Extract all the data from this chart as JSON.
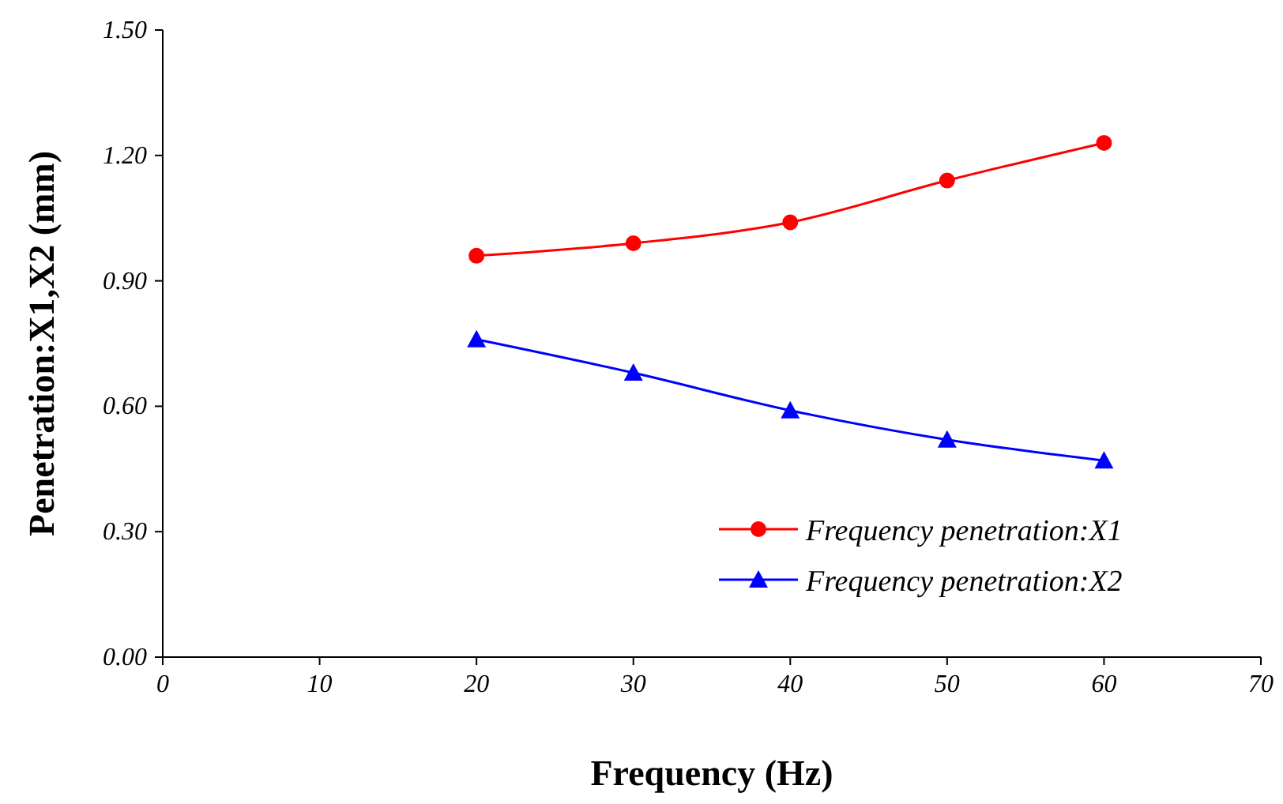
{
  "chart_data": {
    "type": "line",
    "xlabel": "Frequency (Hz)",
    "ylabel": "Penetration:X1,X2 (mm)",
    "x": [
      20,
      30,
      40,
      50,
      60
    ],
    "series": [
      {
        "name": "Frequency penetration:X1",
        "color": "#ff0000",
        "marker": "circle",
        "values": [
          0.96,
          0.99,
          1.04,
          1.14,
          1.23
        ]
      },
      {
        "name": "Frequency penetration:X2",
        "color": "#0000ff",
        "marker": "triangle",
        "values": [
          0.76,
          0.68,
          0.59,
          0.52,
          0.47
        ]
      }
    ],
    "xlim": [
      0,
      70
    ],
    "xticks": [
      0,
      10,
      20,
      30,
      40,
      50,
      60,
      70
    ],
    "ylim": [
      0,
      1.5
    ],
    "yticks": [
      {
        "value": 0,
        "label": "0.00"
      },
      {
        "value": 0.3,
        "label": "0.30"
      },
      {
        "value": 0.6,
        "label": "0.60"
      },
      {
        "value": 0.9,
        "label": "0.90"
      },
      {
        "value": 1.2,
        "label": "1.20"
      },
      {
        "value": 1.5,
        "label": "1.50"
      }
    ],
    "grid": false,
    "legend": "bottom right",
    "line_style": "solid"
  }
}
